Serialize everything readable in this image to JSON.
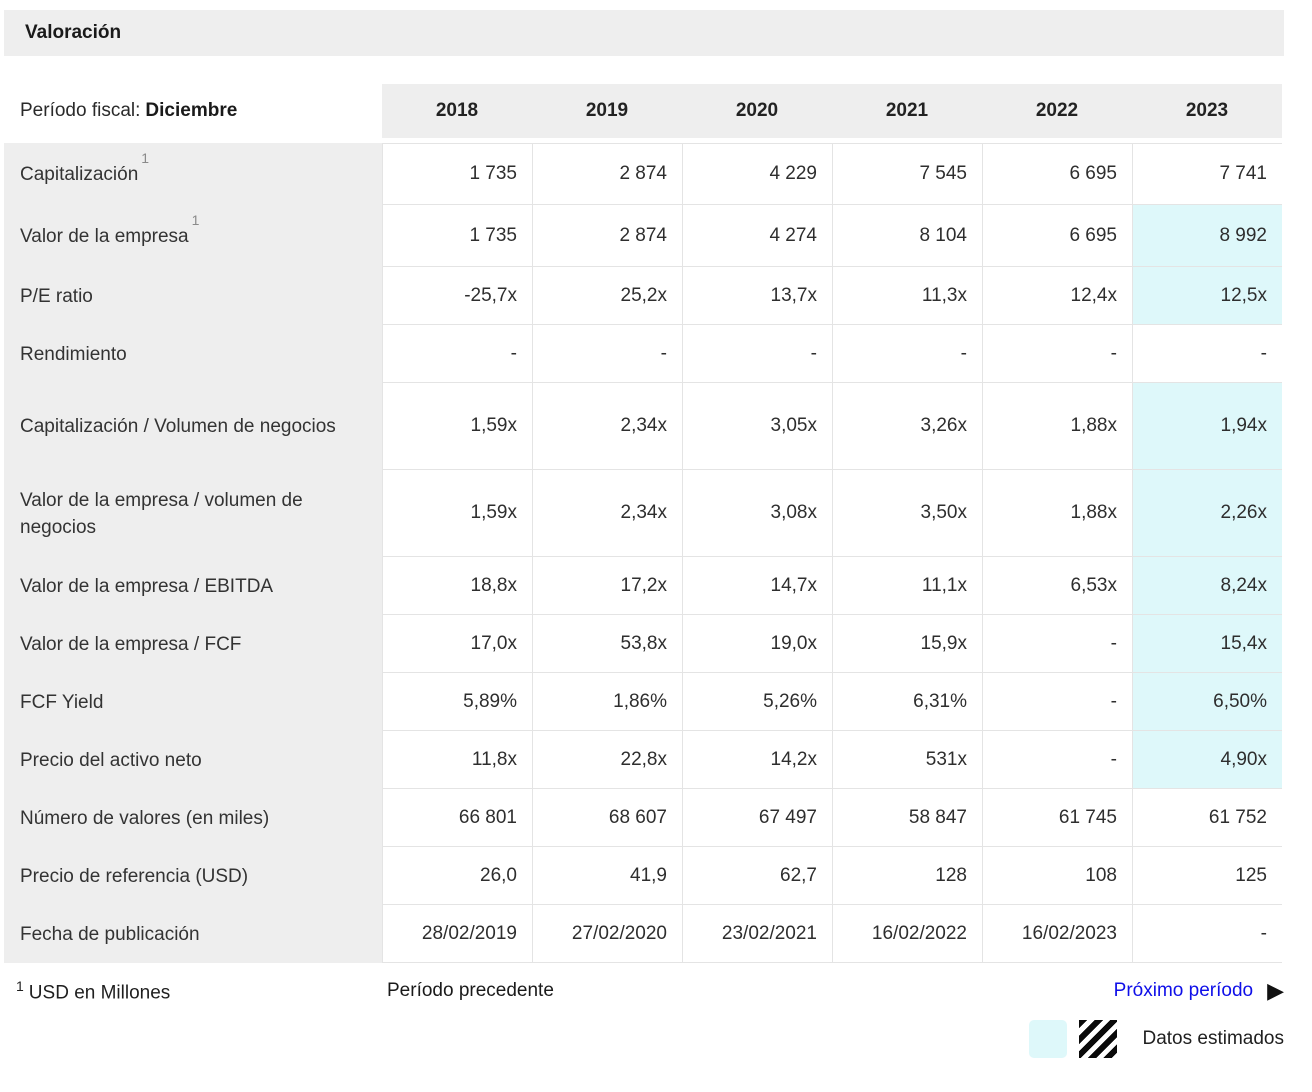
{
  "title": "Valoración",
  "table": {
    "period_label": "Período fiscal:",
    "period_value": "Diciembre",
    "years": [
      "2018",
      "2019",
      "2020",
      "2021",
      "2022",
      "2023"
    ],
    "rows": [
      {
        "label": "Capitalización",
        "footnote_ref": "1",
        "values": [
          "1 735",
          "2 874",
          "4 229",
          "7 545",
          "6 695",
          "7 741"
        ],
        "estimated": [
          false,
          false,
          false,
          false,
          false,
          false
        ]
      },
      {
        "label": "Valor de la empresa",
        "footnote_ref": "1",
        "values": [
          "1 735",
          "2 874",
          "4 274",
          "8 104",
          "6 695",
          "8 992"
        ],
        "estimated": [
          false,
          false,
          false,
          false,
          false,
          true
        ]
      },
      {
        "label": "P/E ratio",
        "values": [
          "-25,7x",
          "25,2x",
          "13,7x",
          "11,3x",
          "12,4x",
          "12,5x"
        ],
        "estimated": [
          false,
          false,
          false,
          false,
          false,
          true
        ]
      },
      {
        "label": "Rendimiento",
        "values": [
          "-",
          "-",
          "-",
          "-",
          "-",
          "-"
        ],
        "estimated": [
          false,
          false,
          false,
          false,
          false,
          false
        ]
      },
      {
        "label": "Capitalización / Volumen de negocios",
        "values": [
          "1,59x",
          "2,34x",
          "3,05x",
          "3,26x",
          "1,88x",
          "1,94x"
        ],
        "estimated": [
          false,
          false,
          false,
          false,
          false,
          true
        ]
      },
      {
        "label": "Valor de la empresa / volumen de negocios",
        "values": [
          "1,59x",
          "2,34x",
          "3,08x",
          "3,50x",
          "1,88x",
          "2,26x"
        ],
        "estimated": [
          false,
          false,
          false,
          false,
          false,
          true
        ]
      },
      {
        "label": "Valor de la empresa / EBITDA",
        "values": [
          "18,8x",
          "17,2x",
          "14,7x",
          "11,1x",
          "6,53x",
          "8,24x"
        ],
        "estimated": [
          false,
          false,
          false,
          false,
          false,
          true
        ]
      },
      {
        "label": "Valor de la empresa / FCF",
        "values": [
          "17,0x",
          "53,8x",
          "19,0x",
          "15,9x",
          "-",
          "15,4x"
        ],
        "estimated": [
          false,
          false,
          false,
          false,
          false,
          true
        ]
      },
      {
        "label": "FCF Yield",
        "values": [
          "5,89%",
          "1,86%",
          "5,26%",
          "6,31%",
          "-",
          "6,50%"
        ],
        "estimated": [
          false,
          false,
          false,
          false,
          false,
          true
        ]
      },
      {
        "label": "Precio del activo neto",
        "values": [
          "11,8x",
          "22,8x",
          "14,2x",
          "531x",
          "-",
          "4,90x"
        ],
        "estimated": [
          false,
          false,
          false,
          false,
          false,
          true
        ]
      },
      {
        "label": "Número de valores (en miles)",
        "values": [
          "66 801",
          "68 607",
          "67 497",
          "58 847",
          "61 745",
          "61 752"
        ],
        "estimated": [
          false,
          false,
          false,
          false,
          false,
          false
        ]
      },
      {
        "label": "Precio de referencia (USD)",
        "values": [
          "26,0",
          "41,9",
          "62,7",
          "128",
          "108",
          "125"
        ],
        "estimated": [
          false,
          false,
          false,
          false,
          false,
          false
        ]
      },
      {
        "label": "Fecha de publicación",
        "values": [
          "28/02/2019",
          "27/02/2020",
          "23/02/2021",
          "16/02/2022",
          "16/02/2023",
          "-"
        ],
        "estimated": [
          false,
          false,
          false,
          false,
          false,
          false
        ]
      }
    ]
  },
  "footer": {
    "footnote_sup": "1",
    "footnote_text": "USD en Millones",
    "prev_label": "Período precedente",
    "next_label": "Próximo período",
    "next_icon": "▶",
    "legend_label": "Datos estimados"
  },
  "colors": {
    "estimate_bg": "#def8fa",
    "link_blue": "#0f0fe8",
    "header_bg": "#eeeeee"
  }
}
